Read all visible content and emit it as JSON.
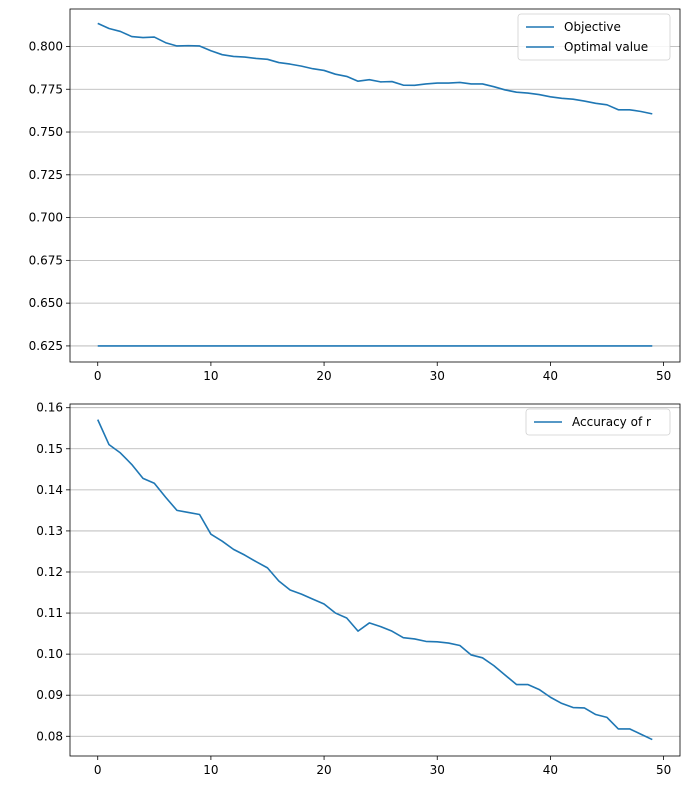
{
  "chart_data": [
    {
      "type": "line",
      "title": "",
      "xlabel": "",
      "ylabel": "",
      "x": [
        0,
        1,
        2,
        3,
        4,
        5,
        6,
        7,
        8,
        9,
        10,
        11,
        12,
        13,
        14,
        15,
        16,
        17,
        18,
        19,
        20,
        21,
        22,
        23,
        24,
        25,
        26,
        27,
        28,
        29,
        30,
        31,
        32,
        33,
        34,
        35,
        36,
        37,
        38,
        39,
        40,
        41,
        42,
        43,
        44,
        45,
        46,
        47,
        48,
        49
      ],
      "xlim": [
        -2.45,
        51.45
      ],
      "ylim": [
        0.6156,
        0.8219
      ],
      "xticks": [
        0,
        10,
        20,
        30,
        40,
        50
      ],
      "xtick_labels": [
        "0",
        "10",
        "20",
        "30",
        "40",
        "50"
      ],
      "yticks": [
        0.625,
        0.65,
        0.675,
        0.7,
        0.725,
        0.75,
        0.775,
        0.8
      ],
      "ytick_labels": [
        "0.625",
        "0.650",
        "0.675",
        "0.700",
        "0.725",
        "0.750",
        "0.775",
        "0.800"
      ],
      "grid": "y",
      "legend_position": "top-right",
      "series": [
        {
          "name": "Objective",
          "color": "#1f77b4",
          "values": [
            0.8135,
            0.8105,
            0.8088,
            0.8058,
            0.8052,
            0.8055,
            0.8022,
            0.8003,
            0.8005,
            0.8003,
            0.7975,
            0.7952,
            0.7942,
            0.7938,
            0.793,
            0.7925,
            0.7906,
            0.7897,
            0.7885,
            0.787,
            0.786,
            0.7838,
            0.7825,
            0.7797,
            0.7806,
            0.7793,
            0.7795,
            0.7774,
            0.7773,
            0.7781,
            0.7786,
            0.7786,
            0.779,
            0.7781,
            0.7781,
            0.7765,
            0.7746,
            0.7733,
            0.7728,
            0.7719,
            0.7706,
            0.7697,
            0.7692,
            0.7681,
            0.7668,
            0.7659,
            0.763,
            0.763,
            0.762,
            0.7606
          ]
        },
        {
          "name": "Optimal value",
          "color": "#1f77b4",
          "values": [
            0.625,
            0.625,
            0.625,
            0.625,
            0.625,
            0.625,
            0.625,
            0.625,
            0.625,
            0.625,
            0.625,
            0.625,
            0.625,
            0.625,
            0.625,
            0.625,
            0.625,
            0.625,
            0.625,
            0.625,
            0.625,
            0.625,
            0.625,
            0.625,
            0.625,
            0.625,
            0.625,
            0.625,
            0.625,
            0.625,
            0.625,
            0.625,
            0.625,
            0.625,
            0.625,
            0.625,
            0.625,
            0.625,
            0.625,
            0.625,
            0.625,
            0.625,
            0.625,
            0.625,
            0.625,
            0.625,
            0.625,
            0.625,
            0.625,
            0.625
          ]
        }
      ]
    },
    {
      "type": "line",
      "title": "",
      "xlabel": "",
      "ylabel": "",
      "x": [
        0,
        1,
        2,
        3,
        4,
        5,
        6,
        7,
        8,
        9,
        10,
        11,
        12,
        13,
        14,
        15,
        16,
        17,
        18,
        19,
        20,
        21,
        22,
        23,
        24,
        25,
        26,
        27,
        28,
        29,
        30,
        31,
        32,
        33,
        34,
        35,
        36,
        37,
        38,
        39,
        40,
        41,
        42,
        43,
        44,
        45,
        46,
        47,
        48,
        49
      ],
      "xlim": [
        -2.45,
        51.45
      ],
      "ylim": [
        0.0752,
        0.1609
      ],
      "xticks": [
        0,
        10,
        20,
        30,
        40,
        50
      ],
      "xtick_labels": [
        "0",
        "10",
        "20",
        "30",
        "40",
        "50"
      ],
      "yticks": [
        0.08,
        0.09,
        0.1,
        0.11,
        0.12,
        0.13,
        0.14,
        0.15,
        0.16
      ],
      "ytick_labels": [
        "0.08",
        "0.09",
        "0.10",
        "0.11",
        "0.12",
        "0.13",
        "0.14",
        "0.15",
        "0.16"
      ],
      "grid": "y",
      "legend_position": "top-right",
      "series": [
        {
          "name": "Accuracy of r",
          "color": "#1f77b4",
          "values": [
            0.1571,
            0.151,
            0.149,
            0.1462,
            0.1428,
            0.1416,
            0.1382,
            0.135,
            0.1345,
            0.134,
            0.1292,
            0.1275,
            0.1255,
            0.1241,
            0.1225,
            0.121,
            0.1178,
            0.1156,
            0.1146,
            0.1134,
            0.1122,
            0.11,
            0.1088,
            0.1056,
            0.1076,
            0.1067,
            0.1056,
            0.104,
            0.1037,
            0.1031,
            0.103,
            0.1027,
            0.1021,
            0.0998,
            0.0991,
            0.0972,
            0.0949,
            0.0926,
            0.0926,
            0.0914,
            0.0895,
            0.088,
            0.087,
            0.0869,
            0.0853,
            0.0846,
            0.0818,
            0.0818,
            0.0805,
            0.0792
          ]
        }
      ]
    }
  ]
}
